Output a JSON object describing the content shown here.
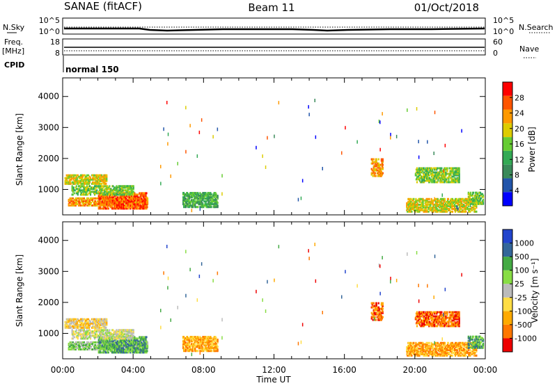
{
  "header": {
    "station": "SANAE (fitACF)",
    "beam": "Beam 11",
    "date": "01/Oct/2018"
  },
  "noise_panel": {
    "left_label": "N.Sky",
    "right_label": "N.Search",
    "left_ticks": [
      "10^5",
      "10^0"
    ],
    "right_ticks": [
      "10^5",
      "10^0"
    ]
  },
  "freq_panel": {
    "left_label_top": "Freq.",
    "left_label_unit": "[MHz]",
    "right_label": "Nave",
    "left_ticks": [
      "18",
      "8"
    ],
    "right_ticks": [
      "60",
      "0"
    ]
  },
  "cpid": {
    "label": "CPID",
    "value": "normal 150"
  },
  "time_axis": {
    "label": "Time UT",
    "ticks": [
      "00:00",
      "04:00",
      "08:00",
      "12:00",
      "16:00",
      "20:00",
      "00:00"
    ]
  },
  "colors": {
    "power": [
      "#0000ff",
      "#2255aa",
      "#3a8a5a",
      "#33aa55",
      "#66cc33",
      "#ddcc00",
      "#ff9900",
      "#ff5500",
      "#ff0000"
    ],
    "velocity": [
      "#ee0000",
      "#ff7700",
      "#ffaa00",
      "#ffdd44",
      "#bbbbbb",
      "#88dd44",
      "#44aa44",
      "#336699",
      "#2244cc"
    ]
  },
  "chart_data": [
    {
      "type": "heatmap",
      "name": "power",
      "ylabel": "Slant Range [km]",
      "xlabel": "",
      "yticks": [
        "1000",
        "2000",
        "3000",
        "4000"
      ],
      "ylim": [
        180,
        4600
      ],
      "xlim_hours": [
        0,
        24
      ],
      "colorbar": {
        "label": "Power [dB]",
        "ticks": [
          "4",
          "8",
          "12",
          "16",
          "20",
          "24",
          "28"
        ]
      },
      "echo_regions": [
        {
          "t0": 0.1,
          "t1": 2.5,
          "r0": 1150,
          "r1": 1450,
          "level": 5
        },
        {
          "t0": 0.3,
          "t1": 4.8,
          "r0": 450,
          "r1": 700,
          "level": 6
        },
        {
          "t0": 2.0,
          "t1": 4.8,
          "r0": 350,
          "r1": 900,
          "level": 7
        },
        {
          "t0": 0.5,
          "t1": 4.0,
          "r0": 800,
          "r1": 1100,
          "level": 4
        },
        {
          "t0": 6.8,
          "t1": 8.8,
          "r0": 400,
          "r1": 900,
          "level": 3
        },
        {
          "t0": 17.5,
          "t1": 18.2,
          "r0": 1400,
          "r1": 2000,
          "level": 6
        },
        {
          "t0": 20.0,
          "t1": 22.5,
          "r0": 1200,
          "r1": 1700,
          "level": 4
        },
        {
          "t0": 19.5,
          "t1": 23.5,
          "r0": 250,
          "r1": 700,
          "level": 5
        },
        {
          "t0": 23.0,
          "t1": 23.9,
          "r0": 500,
          "r1": 900,
          "level": 4
        }
      ]
    },
    {
      "type": "heatmap",
      "name": "velocity",
      "ylabel": "Slant Range [km]",
      "xlabel": "Time UT",
      "yticks": [
        "1000",
        "2000",
        "3000",
        "4000"
      ],
      "ylim": [
        180,
        4600
      ],
      "xlim_hours": [
        0,
        24
      ],
      "colorbar": {
        "label": "Velocity [m s⁻¹]",
        "ticks": [
          "-1000",
          "-500",
          "-100",
          "-25",
          "25",
          "100",
          "500",
          "1000"
        ]
      },
      "echo_regions": [
        {
          "t0": 0.1,
          "t1": 2.5,
          "r0": 1150,
          "r1": 1450,
          "level": 3
        },
        {
          "t0": 0.3,
          "t1": 4.8,
          "r0": 450,
          "r1": 700,
          "level": 5
        },
        {
          "t0": 2.0,
          "t1": 4.8,
          "r0": 350,
          "r1": 900,
          "level": 6
        },
        {
          "t0": 0.5,
          "t1": 4.0,
          "r0": 800,
          "r1": 1100,
          "level": 4
        },
        {
          "t0": 6.8,
          "t1": 8.8,
          "r0": 400,
          "r1": 900,
          "level": 2
        },
        {
          "t0": 17.5,
          "t1": 18.2,
          "r0": 1400,
          "r1": 2000,
          "level": 1
        },
        {
          "t0": 20.0,
          "t1": 22.5,
          "r0": 1200,
          "r1": 1700,
          "level": 1
        },
        {
          "t0": 19.5,
          "t1": 23.5,
          "r0": 250,
          "r1": 700,
          "level": 2
        },
        {
          "t0": 23.0,
          "t1": 23.9,
          "r0": 500,
          "r1": 900,
          "level": 6
        }
      ]
    }
  ]
}
